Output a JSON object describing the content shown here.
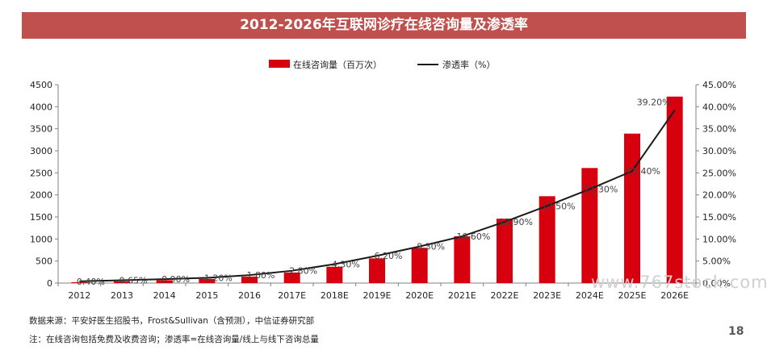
{
  "title": "2012-2026年互联网诊疗在线咨询量及渗透率",
  "source_note": "数据来源：平安好医生招股书，Frost&Sullivan（含预测），中信证券研究部",
  "footnote": "注：在线咨询包括免费及收费咨询；渗透率=在线咨询量/线上与线下咨询总量",
  "page_number": "18",
  "watermark": "www.767stock.com",
  "colors": {
    "bar": "#d7000f",
    "line": "#1a1a1a",
    "title_bg": "#c0504d"
  },
  "chart_data": {
    "type": "bar+line",
    "categories": [
      "2012",
      "2013",
      "2014",
      "2015",
      "2016",
      "2017E",
      "2018E",
      "2019E",
      "2020E",
      "2021E",
      "2022E",
      "2023E",
      "2024E",
      "2025E",
      "2026E"
    ],
    "series": [
      {
        "name": "在线咨询量（百万次）",
        "type": "bar",
        "axis": "left",
        "values": [
          20,
          40,
          65,
          95,
          145,
          240,
          370,
          560,
          800,
          1060,
          1460,
          1970,
          2610,
          3390,
          4230
        ]
      },
      {
        "name": "渗透率（%）",
        "type": "line",
        "axis": "right",
        "values": [
          0.4,
          0.65,
          0.9,
          1.2,
          1.8,
          2.8,
          4.3,
          6.2,
          8.3,
          10.6,
          13.9,
          17.5,
          21.3,
          25.4,
          39.2
        ],
        "data_labels": [
          "0.40%",
          "0.65%",
          "0.90%",
          "1.20%",
          "1.80%",
          "2.80%",
          "4.30%",
          "6.20%",
          "8.30%",
          "10.60%",
          "13.90%",
          "17.50%",
          "21.30%",
          "25.40%",
          "39.20%"
        ]
      }
    ],
    "y_left": {
      "min": 0,
      "max": 4500,
      "step": 500,
      "ticks": [
        "0",
        "500",
        "1000",
        "1500",
        "2000",
        "2500",
        "3000",
        "3500",
        "4000",
        "4500"
      ]
    },
    "y_right": {
      "min": 0,
      "max": 45,
      "step": 5,
      "ticks": [
        "0.00%",
        "5.00%",
        "10.00%",
        "15.00%",
        "20.00%",
        "25.00%",
        "30.00%",
        "35.00%",
        "40.00%",
        "45.00%"
      ]
    },
    "legend_position": "top-center",
    "grid": false
  }
}
